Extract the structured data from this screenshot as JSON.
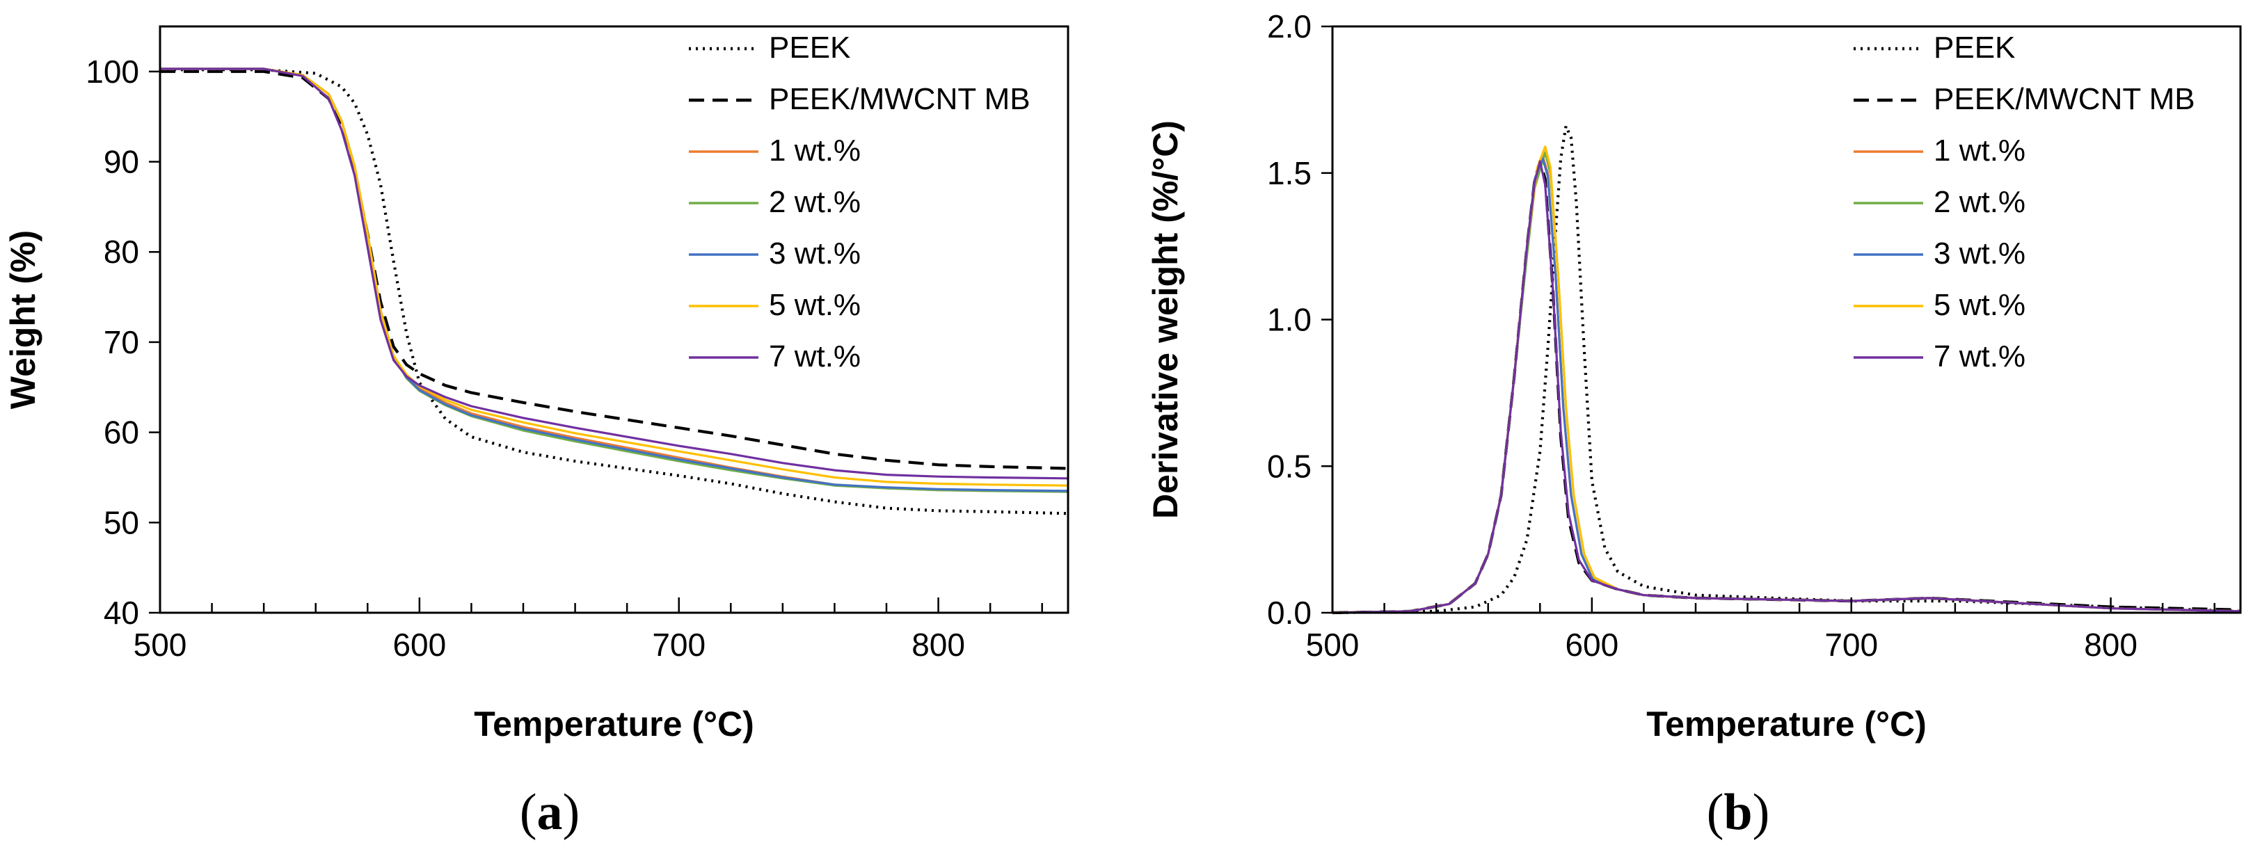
{
  "chart_data": [
    {
      "type": "line",
      "panel_label": "(a)",
      "xlabel": "Temperature (°C)",
      "ylabel": "Weight (%)",
      "xlim": [
        500,
        850
      ],
      "ylim": [
        40,
        105
      ],
      "xticks": [
        500,
        600,
        700,
        800
      ],
      "yticks": [
        40,
        50,
        60,
        70,
        80,
        90,
        100
      ],
      "x_minor_step": 20,
      "legend_position": "top-right",
      "series": [
        {
          "name": "PEEK",
          "color": "#000000",
          "dash": "dotted",
          "x": [
            500,
            540,
            560,
            570,
            575,
            580,
            585,
            590,
            595,
            600,
            610,
            620,
            640,
            660,
            680,
            700,
            720,
            740,
            760,
            780,
            800,
            820,
            850
          ],
          "y": [
            100.2,
            100.2,
            99.8,
            98.3,
            96.5,
            93.0,
            87.5,
            79.0,
            71.0,
            65.5,
            61.5,
            59.5,
            57.8,
            56.8,
            56.0,
            55.2,
            54.3,
            53.2,
            52.3,
            51.6,
            51.3,
            51.2,
            51.0
          ]
        },
        {
          "name": "PEEK/MWCNT MB",
          "color": "#000000",
          "dash": "dashed",
          "x": [
            500,
            540,
            555,
            565,
            570,
            575,
            580,
            585,
            590,
            595,
            600,
            610,
            620,
            640,
            660,
            680,
            700,
            720,
            740,
            760,
            780,
            800,
            820,
            850
          ],
          "y": [
            100.0,
            100.0,
            99.3,
            97.0,
            94.0,
            89.0,
            82.0,
            74.5,
            69.5,
            67.5,
            66.5,
            65.2,
            64.4,
            63.3,
            62.3,
            61.4,
            60.5,
            59.6,
            58.6,
            57.6,
            56.9,
            56.4,
            56.2,
            56.0
          ]
        },
        {
          "name": "1 wt.%",
          "color": "#ED7D31",
          "dash": "solid",
          "x": [
            500,
            540,
            555,
            565,
            570,
            575,
            580,
            585,
            590,
            595,
            600,
            610,
            620,
            640,
            660,
            680,
            700,
            720,
            740,
            760,
            780,
            800,
            820,
            850
          ],
          "y": [
            100.3,
            100.3,
            99.6,
            97.5,
            94.5,
            89.5,
            82.0,
            73.5,
            68.5,
            66.3,
            64.9,
            63.3,
            62.1,
            60.6,
            59.4,
            58.3,
            57.2,
            56.1,
            55.1,
            54.2,
            53.8,
            53.6,
            53.5,
            53.5
          ]
        },
        {
          "name": "2 wt.%",
          "color": "#70AD47",
          "dash": "solid",
          "x": [
            500,
            540,
            555,
            565,
            570,
            575,
            580,
            585,
            590,
            595,
            600,
            610,
            620,
            640,
            660,
            680,
            700,
            720,
            740,
            760,
            780,
            800,
            820,
            850
          ],
          "y": [
            100.3,
            100.3,
            99.6,
            97.5,
            94.5,
            89.5,
            82.0,
            73.5,
            68.5,
            66.0,
            64.6,
            63.0,
            61.8,
            60.2,
            59.0,
            57.9,
            56.8,
            55.8,
            54.9,
            54.1,
            53.8,
            53.6,
            53.5,
            53.4
          ]
        },
        {
          "name": "3 wt.%",
          "color": "#4472C4",
          "dash": "solid",
          "x": [
            500,
            540,
            555,
            565,
            570,
            575,
            580,
            585,
            590,
            595,
            600,
            610,
            620,
            640,
            660,
            680,
            700,
            720,
            740,
            760,
            780,
            800,
            820,
            850
          ],
          "y": [
            100.3,
            100.3,
            99.6,
            97.5,
            94.5,
            89.5,
            82.0,
            73.5,
            68.5,
            66.1,
            64.7,
            63.1,
            61.9,
            60.4,
            59.2,
            58.1,
            57.0,
            56.0,
            55.0,
            54.2,
            53.9,
            53.7,
            53.6,
            53.5
          ]
        },
        {
          "name": "5 wt.%",
          "color": "#FFC000",
          "dash": "solid",
          "x": [
            500,
            540,
            555,
            565,
            570,
            575,
            580,
            585,
            590,
            595,
            600,
            610,
            620,
            640,
            660,
            680,
            700,
            720,
            740,
            760,
            780,
            800,
            820,
            850
          ],
          "y": [
            100.3,
            100.3,
            99.6,
            97.5,
            94.5,
            89.5,
            82.0,
            73.5,
            68.5,
            66.4,
            65.1,
            63.6,
            62.5,
            61.1,
            59.9,
            58.9,
            57.9,
            56.9,
            55.9,
            55.0,
            54.5,
            54.3,
            54.2,
            54.1
          ]
        },
        {
          "name": "7 wt.%",
          "color": "#7030A0",
          "dash": "solid",
          "x": [
            500,
            540,
            555,
            565,
            570,
            575,
            580,
            585,
            590,
            595,
            600,
            610,
            620,
            640,
            660,
            680,
            700,
            720,
            740,
            760,
            780,
            800,
            820,
            850
          ],
          "y": [
            100.3,
            100.3,
            99.5,
            97.0,
            93.5,
            88.5,
            80.5,
            72.5,
            68.0,
            66.2,
            65.2,
            63.9,
            62.9,
            61.6,
            60.5,
            59.5,
            58.5,
            57.6,
            56.6,
            55.8,
            55.3,
            55.1,
            55.0,
            54.9
          ]
        }
      ]
    },
    {
      "type": "line",
      "panel_label": "(b)",
      "xlabel": "Temperature (°C)",
      "ylabel": "Derivative weight (%/°C)",
      "xlim": [
        500,
        850
      ],
      "ylim": [
        0,
        2.0
      ],
      "xticks": [
        500,
        600,
        700,
        800
      ],
      "yticks": [
        0.0,
        0.5,
        1.0,
        1.5,
        2.0
      ],
      "ytick_labels": [
        "0.0",
        "0.5",
        "1.0",
        "1.5",
        "2.0"
      ],
      "x_minor_step": 20,
      "legend_position": "top-right",
      "series": [
        {
          "name": "PEEK",
          "color": "#000000",
          "dash": "dotted",
          "x": [
            500,
            540,
            555,
            565,
            570,
            575,
            580,
            583,
            586,
            588,
            590,
            592,
            594,
            597,
            600,
            605,
            610,
            620,
            640,
            700,
            740,
            800,
            850
          ],
          "y": [
            0,
            0.005,
            0.02,
            0.06,
            0.12,
            0.25,
            0.55,
            0.9,
            1.3,
            1.55,
            1.66,
            1.62,
            1.4,
            0.9,
            0.45,
            0.22,
            0.14,
            0.09,
            0.06,
            0.04,
            0.04,
            0.02,
            0.005
          ]
        },
        {
          "name": "PEEK/MWCNT MB",
          "color": "#000000",
          "dash": "dashed",
          "x": [
            500,
            530,
            545,
            555,
            560,
            565,
            570,
            575,
            578,
            580,
            582,
            585,
            588,
            591,
            595,
            600,
            610,
            620,
            640,
            700,
            730,
            800,
            850
          ],
          "y": [
            0,
            0.005,
            0.03,
            0.1,
            0.2,
            0.4,
            0.8,
            1.25,
            1.48,
            1.54,
            1.48,
            1.1,
            0.6,
            0.32,
            0.17,
            0.11,
            0.08,
            0.06,
            0.05,
            0.04,
            0.05,
            0.02,
            0.01
          ]
        },
        {
          "name": "1 wt.%",
          "color": "#ED7D31",
          "dash": "solid",
          "x": [
            500,
            530,
            545,
            555,
            560,
            565,
            570,
            575,
            578,
            581,
            583,
            586,
            589,
            592,
            596,
            600,
            610,
            620,
            640,
            700,
            730,
            800,
            850
          ],
          "y": [
            0,
            0.005,
            0.03,
            0.1,
            0.2,
            0.4,
            0.8,
            1.25,
            1.48,
            1.56,
            1.5,
            1.15,
            0.7,
            0.4,
            0.2,
            0.12,
            0.08,
            0.06,
            0.05,
            0.04,
            0.05,
            0.015,
            0.005
          ]
        },
        {
          "name": "2 wt.%",
          "color": "#70AD47",
          "dash": "solid",
          "x": [
            500,
            530,
            545,
            555,
            560,
            565,
            570,
            575,
            578,
            582,
            584,
            587,
            590,
            593,
            597,
            601,
            610,
            620,
            640,
            700,
            730,
            800,
            850
          ],
          "y": [
            0,
            0.005,
            0.03,
            0.1,
            0.2,
            0.4,
            0.8,
            1.22,
            1.45,
            1.57,
            1.5,
            1.15,
            0.7,
            0.4,
            0.2,
            0.12,
            0.08,
            0.06,
            0.05,
            0.04,
            0.05,
            0.015,
            0.005
          ]
        },
        {
          "name": "3 wt.%",
          "color": "#4472C4",
          "dash": "solid",
          "x": [
            500,
            530,
            545,
            555,
            560,
            565,
            570,
            575,
            578,
            581,
            583,
            586,
            589,
            592,
            596,
            600,
            610,
            620,
            640,
            700,
            730,
            800,
            850
          ],
          "y": [
            0,
            0.005,
            0.03,
            0.1,
            0.2,
            0.4,
            0.8,
            1.25,
            1.48,
            1.55,
            1.49,
            1.15,
            0.7,
            0.4,
            0.2,
            0.12,
            0.08,
            0.06,
            0.05,
            0.04,
            0.05,
            0.015,
            0.005
          ]
        },
        {
          "name": "5 wt.%",
          "color": "#FFC000",
          "dash": "solid",
          "x": [
            500,
            530,
            545,
            555,
            560,
            565,
            570,
            575,
            579,
            582,
            584,
            587,
            590,
            593,
            597,
            601,
            610,
            620,
            640,
            700,
            730,
            800,
            850
          ],
          "y": [
            0,
            0.005,
            0.03,
            0.1,
            0.2,
            0.4,
            0.8,
            1.25,
            1.52,
            1.59,
            1.52,
            1.15,
            0.7,
            0.4,
            0.2,
            0.12,
            0.08,
            0.06,
            0.05,
            0.04,
            0.05,
            0.015,
            0.005
          ]
        },
        {
          "name": "7 wt.%",
          "color": "#7030A0",
          "dash": "solid",
          "x": [
            500,
            530,
            545,
            555,
            560,
            565,
            570,
            575,
            578,
            580,
            582,
            585,
            588,
            591,
            595,
            600,
            610,
            620,
            640,
            700,
            730,
            800,
            850
          ],
          "y": [
            0,
            0.005,
            0.03,
            0.1,
            0.2,
            0.4,
            0.8,
            1.25,
            1.47,
            1.54,
            1.46,
            1.1,
            0.62,
            0.34,
            0.18,
            0.11,
            0.08,
            0.06,
            0.05,
            0.04,
            0.05,
            0.015,
            0.005
          ]
        }
      ]
    }
  ]
}
